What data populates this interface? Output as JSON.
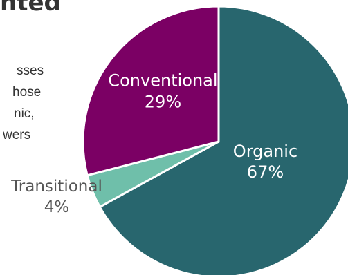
{
  "page": {
    "heading_fragment": "nted",
    "body_fragments": [
      "sses",
      "hose",
      "nic,",
      "wers"
    ]
  },
  "colors": {
    "organic": "#28666E",
    "conventional": "#7B0064",
    "transitional": "#6FBFAA",
    "outside_label": "#555555",
    "inside_label": "#ffffff"
  },
  "chart_data": {
    "type": "pie",
    "title": "",
    "start": "12 o'clock",
    "direction": "clockwise",
    "slices": [
      {
        "label": "Organic",
        "value": 67,
        "value_label": "67%",
        "color": "#28666E",
        "label_position": "inside"
      },
      {
        "label": "Transitional",
        "value": 4,
        "value_label": "4%",
        "color": "#6FBFAA",
        "label_position": "outside"
      },
      {
        "label": "Conventional",
        "value": 29,
        "value_label": "29%",
        "color": "#7B0064",
        "label_position": "inside"
      }
    ]
  }
}
